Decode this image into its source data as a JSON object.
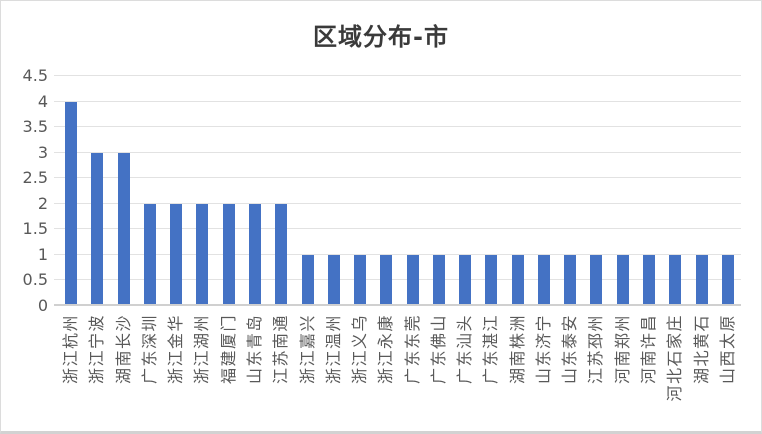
{
  "chart_data": {
    "type": "bar",
    "title": "区域分布-市",
    "categories": [
      "浙江杭州",
      "浙江宁波",
      "湖南长沙",
      "广东深圳",
      "浙江金华",
      "浙江湖州",
      "福建厦门",
      "山东青岛",
      "江苏南通",
      "浙江嘉兴",
      "浙江温州",
      "浙江义乌",
      "浙江永康",
      "广东东莞",
      "广东佛山",
      "广东汕头",
      "广东湛江",
      "湖南株洲",
      "山东济宁",
      "山东泰安",
      "江苏邳州",
      "河南郑州",
      "河南许昌",
      "河北石家庄",
      "湖北黄石",
      "山西太原"
    ],
    "values": [
      4,
      3,
      3,
      2,
      2,
      2,
      2,
      2,
      2,
      1,
      1,
      1,
      1,
      1,
      1,
      1,
      1,
      1,
      1,
      1,
      1,
      1,
      1,
      1,
      1,
      1
    ],
    "xlabel": "",
    "ylabel": "",
    "ylim": [
      0,
      4.5
    ],
    "ytick_labels": [
      "0",
      "0.5",
      "1",
      "1.5",
      "2",
      "2.5",
      "3",
      "3.5",
      "4",
      "4.5"
    ],
    "grid": true,
    "legend": "none",
    "bar_color": "#4472C4",
    "gridline_color": "#e2e2e2",
    "axis_line_color": "#d0d0d0",
    "tick_text_color": "#595959",
    "title_color": "#3a3a3a"
  }
}
